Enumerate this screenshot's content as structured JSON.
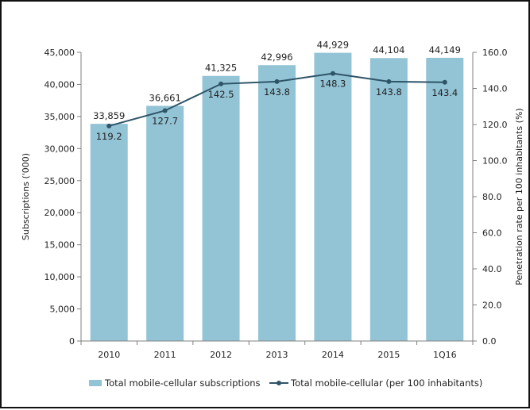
{
  "chart_data": {
    "type": "bar",
    "categories": [
      "2010",
      "2011",
      "2012",
      "2013",
      "2014",
      "2015",
      "1Q16"
    ],
    "series": [
      {
        "name": "Total mobile-cellular subscriptions",
        "type": "bar",
        "axis": "left",
        "values": [
          33859,
          36661,
          41325,
          42996,
          44929,
          44104,
          44149
        ],
        "labels": [
          "33,859",
          "36,661",
          "41,325",
          "42,996",
          "44,929",
          "44,104",
          "44,149"
        ]
      },
      {
        "name": "Total mobile-cellular (per 100 inhabitants)",
        "type": "line",
        "axis": "right",
        "values": [
          119.2,
          127.7,
          142.5,
          143.8,
          148.3,
          143.8,
          143.4
        ],
        "labels": [
          "119.2",
          "127.7",
          "142.5",
          "143.8",
          "148.3",
          "143.8",
          "143.4"
        ]
      }
    ],
    "ylabel": "Subscriptions ('000)",
    "y2label": "Penetration rate per 100 inhabitants (%)",
    "ylim": [
      0,
      45000
    ],
    "y2lim": [
      0,
      160
    ],
    "yticks": [
      "0",
      "5,000",
      "10,000",
      "15,000",
      "20,000",
      "25,000",
      "30,000",
      "35,000",
      "40,000",
      "45,000"
    ],
    "y2ticks": [
      "0.0",
      "20.0",
      "40.0",
      "60.0",
      "80.0",
      "100.0",
      "120.0",
      "140.0",
      "160.0"
    ],
    "grid": false,
    "legend_position": "bottom"
  },
  "colors": {
    "bar": "#93c4d6",
    "line": "#2e5467",
    "axis": "#808080"
  }
}
